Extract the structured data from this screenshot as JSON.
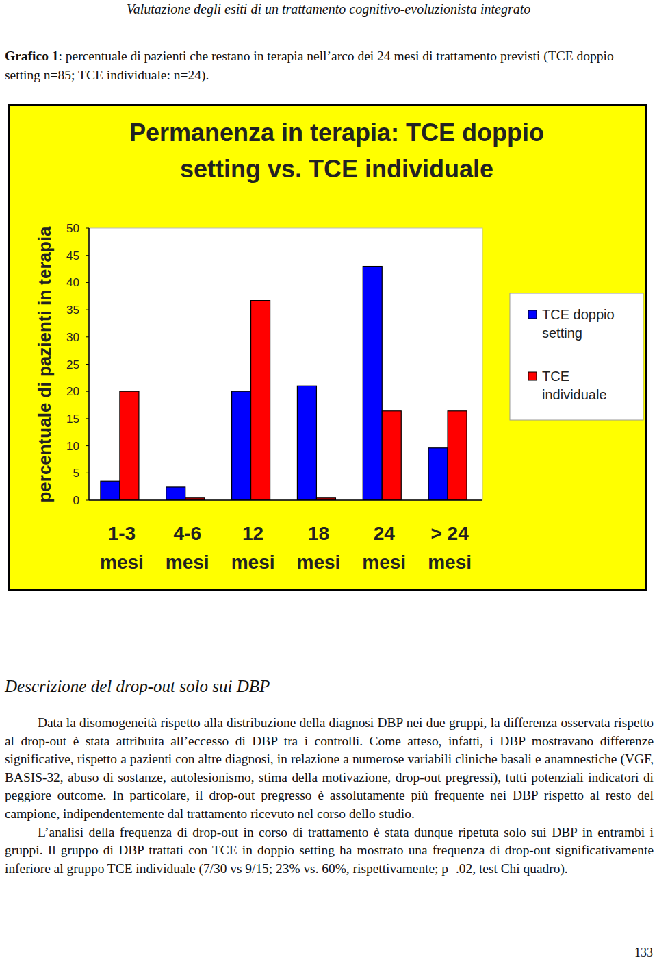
{
  "header": {
    "running_title": "Valutazione degli esiti di un trattamento cognitivo-evoluzionista integrato"
  },
  "caption": {
    "label": "Grafico 1",
    "text": ": percentuale di pazienti che restano in terapia nell’arco dei 24 mesi di trattamento previsti (TCE doppio setting n=85; TCE individuale: n=24)."
  },
  "chart_data": {
    "type": "bar",
    "title": "Permanenza in terapia: TCE doppio setting vs. TCE individuale",
    "y_label": "percentuale di pazienti in terapia",
    "categories": [
      "1-3 mesi",
      "4-6 mesi",
      "12 mesi",
      "18 mesi",
      "24 mesi",
      "> 24 mesi"
    ],
    "series": [
      {
        "name": "TCE doppio setting",
        "color": "#0000ff",
        "values": [
          3.5,
          2.4,
          20,
          21,
          43,
          9.6
        ]
      },
      {
        "name": "TCE individuale",
        "color": "#ff0000",
        "values": [
          20,
          0.4,
          36.7,
          0.4,
          16.4,
          16.4
        ]
      }
    ],
    "ylim": [
      0,
      50
    ],
    "yticks": [
      0,
      5,
      10,
      15,
      20,
      25,
      30,
      35,
      40,
      45,
      50
    ],
    "grid": false,
    "legend": "right"
  },
  "body": {
    "heading": "Descrizione del drop-out solo sui DBP",
    "paragraphs": [
      "Data la disomogeneità rispetto alla distribuzione della diagnosi DBP nei due gruppi, la differenza osservata rispetto al drop-out è stata attribuita all’eccesso di DBP tra i controlli. Come atteso, infatti, i DBP mostravano differenze significative, rispetto a pazienti con altre diagnosi, in relazione a numerose variabili cliniche basali e anamnestiche (VGF, BASIS-32, abuso di sostanze, autolesionismo, stima della motivazione, drop-out pregressi), tutti potenziali indicatori di peggiore outcome. In particolare, il drop-out pregresso è assolutamente più frequente nei DBP rispetto al resto del campione, indipendentemente dal trattamento ricevuto nel corso dello studio.",
      "L’analisi della frequenza di drop-out in corso di trattamento è stata dunque ripetuta solo sui DBP in entrambi i gruppi. Il gruppo di DBP trattati con TCE in doppio setting ha mostrato una frequenza di drop-out significativamente inferiore al gruppo TCE individuale (7/30 vs 9/15; 23% vs. 60%, rispettivamente; p=.02, test Chi quadro)."
    ]
  },
  "page_number": 133
}
